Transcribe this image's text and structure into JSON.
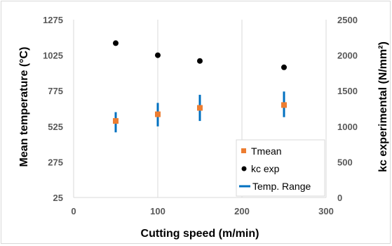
{
  "chart_data": {
    "type": "scatter",
    "title": "",
    "xlabel": "Cutting speed (m/min)",
    "ylabel_left": "Mean temperature (°C)",
    "ylabel_right": "kc experimental (N/mm²)",
    "xlim": [
      0,
      300
    ],
    "ylim_left": [
      25,
      1275
    ],
    "ylim_right": [
      0,
      2500
    ],
    "x_ticks": [
      0,
      100,
      200,
      300
    ],
    "y_left_ticks": [
      25,
      275,
      525,
      775,
      1025,
      1275
    ],
    "y_right_ticks": [
      0,
      500,
      1000,
      1500,
      2000,
      2500
    ],
    "grid": "vertical",
    "legend_position": "bottom-right",
    "series": [
      {
        "name": "Tmean",
        "axis": "left",
        "marker": "square",
        "color": "#ed7d31",
        "points": [
          {
            "x": 50,
            "y": 563
          },
          {
            "x": 100,
            "y": 610
          },
          {
            "x": 150,
            "y": 655
          },
          {
            "x": 250,
            "y": 675
          }
        ]
      },
      {
        "name": "kc exp",
        "axis": "right",
        "marker": "circle",
        "color": "#000000",
        "points": [
          {
            "x": 50,
            "y": 2170
          },
          {
            "x": 100,
            "y": 2000
          },
          {
            "x": 150,
            "y": 1920
          },
          {
            "x": 250,
            "y": 1830
          }
        ]
      },
      {
        "name": "Temp. Range",
        "axis": "left",
        "marker": "error-bar",
        "color": "#0070c0",
        "ranges": [
          {
            "x": 50,
            "low": 483,
            "high": 625
          },
          {
            "x": 100,
            "low": 525,
            "high": 690
          },
          {
            "x": 150,
            "low": 563,
            "high": 747
          },
          {
            "x": 250,
            "low": 590,
            "high": 770
          }
        ]
      }
    ]
  }
}
